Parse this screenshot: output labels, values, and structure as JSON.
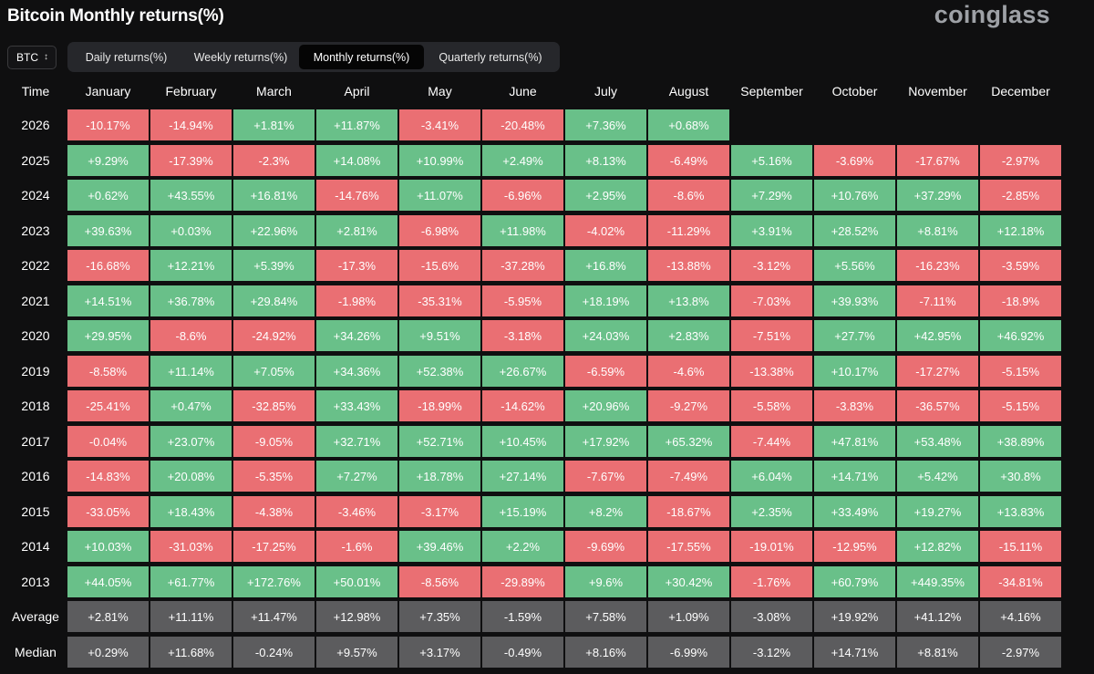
{
  "header": {
    "title": "Bitcoin Monthly returns(%)",
    "brand": "coinglass"
  },
  "controls": {
    "coin": "BTC",
    "tabs": [
      "Daily returns(%)",
      "Weekly returns(%)",
      "Monthly returns(%)",
      "Quarterly returns(%)"
    ],
    "active_tab": "Monthly returns(%)"
  },
  "colors": {
    "positive": "#69c089",
    "negative": "#ea6f73",
    "stat": "#5c5c5e",
    "background": "#0f0f10"
  },
  "table": {
    "first_header": "Time",
    "months": [
      "January",
      "February",
      "March",
      "April",
      "May",
      "June",
      "July",
      "August",
      "September",
      "October",
      "November",
      "December"
    ],
    "rows": [
      {
        "label": "2026",
        "values": [
          "-10.17%",
          "-14.94%",
          "+1.81%",
          "+11.87%",
          "-3.41%",
          "-20.48%",
          "+7.36%",
          "+0.68%",
          "",
          "",
          "",
          ""
        ]
      },
      {
        "label": "2025",
        "values": [
          "+9.29%",
          "-17.39%",
          "-2.3%",
          "+14.08%",
          "+10.99%",
          "+2.49%",
          "+8.13%",
          "-6.49%",
          "+5.16%",
          "-3.69%",
          "-17.67%",
          "-2.97%"
        ]
      },
      {
        "label": "2024",
        "values": [
          "+0.62%",
          "+43.55%",
          "+16.81%",
          "-14.76%",
          "+11.07%",
          "-6.96%",
          "+2.95%",
          "-8.6%",
          "+7.29%",
          "+10.76%",
          "+37.29%",
          "-2.85%"
        ]
      },
      {
        "label": "2023",
        "values": [
          "+39.63%",
          "+0.03%",
          "+22.96%",
          "+2.81%",
          "-6.98%",
          "+11.98%",
          "-4.02%",
          "-11.29%",
          "+3.91%",
          "+28.52%",
          "+8.81%",
          "+12.18%"
        ]
      },
      {
        "label": "2022",
        "values": [
          "-16.68%",
          "+12.21%",
          "+5.39%",
          "-17.3%",
          "-15.6%",
          "-37.28%",
          "+16.8%",
          "-13.88%",
          "-3.12%",
          "+5.56%",
          "-16.23%",
          "-3.59%"
        ]
      },
      {
        "label": "2021",
        "values": [
          "+14.51%",
          "+36.78%",
          "+29.84%",
          "-1.98%",
          "-35.31%",
          "-5.95%",
          "+18.19%",
          "+13.8%",
          "-7.03%",
          "+39.93%",
          "-7.11%",
          "-18.9%"
        ]
      },
      {
        "label": "2020",
        "values": [
          "+29.95%",
          "-8.6%",
          "-24.92%",
          "+34.26%",
          "+9.51%",
          "-3.18%",
          "+24.03%",
          "+2.83%",
          "-7.51%",
          "+27.7%",
          "+42.95%",
          "+46.92%"
        ]
      },
      {
        "label": "2019",
        "values": [
          "-8.58%",
          "+11.14%",
          "+7.05%",
          "+34.36%",
          "+52.38%",
          "+26.67%",
          "-6.59%",
          "-4.6%",
          "-13.38%",
          "+10.17%",
          "-17.27%",
          "-5.15%"
        ]
      },
      {
        "label": "2018",
        "values": [
          "-25.41%",
          "+0.47%",
          "-32.85%",
          "+33.43%",
          "-18.99%",
          "-14.62%",
          "+20.96%",
          "-9.27%",
          "-5.58%",
          "-3.83%",
          "-36.57%",
          "-5.15%"
        ]
      },
      {
        "label": "2017",
        "values": [
          "-0.04%",
          "+23.07%",
          "-9.05%",
          "+32.71%",
          "+52.71%",
          "+10.45%",
          "+17.92%",
          "+65.32%",
          "-7.44%",
          "+47.81%",
          "+53.48%",
          "+38.89%"
        ]
      },
      {
        "label": "2016",
        "values": [
          "-14.83%",
          "+20.08%",
          "-5.35%",
          "+7.27%",
          "+18.78%",
          "+27.14%",
          "-7.67%",
          "-7.49%",
          "+6.04%",
          "+14.71%",
          "+5.42%",
          "+30.8%"
        ]
      },
      {
        "label": "2015",
        "values": [
          "-33.05%",
          "+18.43%",
          "-4.38%",
          "-3.46%",
          "-3.17%",
          "+15.19%",
          "+8.2%",
          "-18.67%",
          "+2.35%",
          "+33.49%",
          "+19.27%",
          "+13.83%"
        ]
      },
      {
        "label": "2014",
        "values": [
          "+10.03%",
          "-31.03%",
          "-17.25%",
          "-1.6%",
          "+39.46%",
          "+2.2%",
          "-9.69%",
          "-17.55%",
          "-19.01%",
          "-12.95%",
          "+12.82%",
          "-15.11%"
        ]
      },
      {
        "label": "2013",
        "values": [
          "+44.05%",
          "+61.77%",
          "+172.76%",
          "+50.01%",
          "-8.56%",
          "-29.89%",
          "+9.6%",
          "+30.42%",
          "-1.76%",
          "+60.79%",
          "+449.35%",
          "-34.81%"
        ]
      }
    ],
    "stats": [
      {
        "label": "Average",
        "values": [
          "+2.81%",
          "+11.11%",
          "+11.47%",
          "+12.98%",
          "+7.35%",
          "-1.59%",
          "+7.58%",
          "+1.09%",
          "-3.08%",
          "+19.92%",
          "+41.12%",
          "+4.16%"
        ]
      },
      {
        "label": "Median",
        "values": [
          "+0.29%",
          "+11.68%",
          "-0.24%",
          "+9.57%",
          "+3.17%",
          "-0.49%",
          "+8.16%",
          "-6.99%",
          "-3.12%",
          "+14.71%",
          "+8.81%",
          "-2.97%"
        ]
      }
    ]
  }
}
